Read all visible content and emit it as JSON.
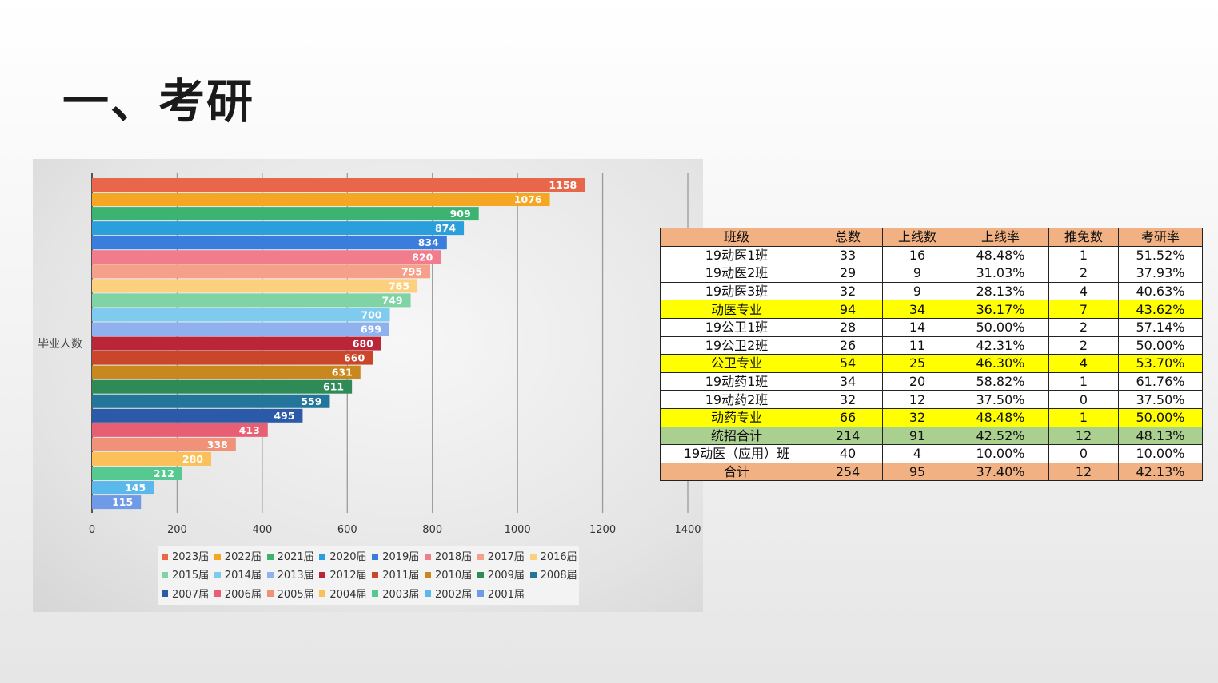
{
  "slide": {
    "title": "一、考研"
  },
  "colors": {
    "header_fill": "#f2b182",
    "subtotal_fill": "#ffff00",
    "unified_fill": "#a9d08e"
  },
  "chart_data": {
    "type": "bar",
    "orientation": "horizontal",
    "ylabel": "毕业人数",
    "xlim": [
      0,
      1400
    ],
    "xticks": [
      "0",
      "200",
      "400",
      "600",
      "800",
      "1000",
      "1200",
      "1400"
    ],
    "grid": true,
    "legend_position": "bottom",
    "series": [
      {
        "name": "2023届",
        "value": 1158,
        "color": "#e8664a"
      },
      {
        "name": "2022届",
        "value": 1076,
        "color": "#f5a623"
      },
      {
        "name": "2021届",
        "value": 909,
        "color": "#3cb371"
      },
      {
        "name": "2020届",
        "value": 874,
        "color": "#2b9fdc"
      },
      {
        "name": "2019届",
        "value": 834,
        "color": "#3b7ddd"
      },
      {
        "name": "2018届",
        "value": 820,
        "color": "#f07c8c"
      },
      {
        "name": "2017届",
        "value": 795,
        "color": "#f5a08a"
      },
      {
        "name": "2016届",
        "value": 765,
        "color": "#fcd07f"
      },
      {
        "name": "2015届",
        "value": 749,
        "color": "#7fd3a5"
      },
      {
        "name": "2014届",
        "value": 700,
        "color": "#7ecbef"
      },
      {
        "name": "2013届",
        "value": 699,
        "color": "#8fb2ef"
      },
      {
        "name": "2012届",
        "value": 680,
        "color": "#b9263a"
      },
      {
        "name": "2011届",
        "value": 660,
        "color": "#c9462a"
      },
      {
        "name": "2010届",
        "value": 631,
        "color": "#c9871f"
      },
      {
        "name": "2009届",
        "value": 611,
        "color": "#2e8a57"
      },
      {
        "name": "2008届",
        "value": 559,
        "color": "#23759a"
      },
      {
        "name": "2007届",
        "value": 495,
        "color": "#2a5aa8"
      },
      {
        "name": "2006届",
        "value": 413,
        "color": "#e85f74"
      },
      {
        "name": "2005届",
        "value": 338,
        "color": "#f09277"
      },
      {
        "name": "2004届",
        "value": 280,
        "color": "#fbc05a"
      },
      {
        "name": "2003届",
        "value": 212,
        "color": "#55c98f"
      },
      {
        "name": "2002届",
        "value": 145,
        "color": "#5bb8ea"
      },
      {
        "name": "2001届",
        "value": 115,
        "color": "#6f9ae8"
      }
    ]
  },
  "table": {
    "header": [
      "班级",
      "总数",
      "上线数",
      "上线率",
      "推免数",
      "考研率"
    ],
    "rows": [
      {
        "kind": "normal",
        "cells": [
          "19动医1班",
          "33",
          "16",
          "48.48%",
          "1",
          "51.52%"
        ]
      },
      {
        "kind": "normal",
        "cells": [
          "19动医2班",
          "29",
          "9",
          "31.03%",
          "2",
          "37.93%"
        ]
      },
      {
        "kind": "normal",
        "cells": [
          "19动医3班",
          "32",
          "9",
          "28.13%",
          "4",
          "40.63%"
        ]
      },
      {
        "kind": "subtotal",
        "cells": [
          "动医专业",
          "94",
          "34",
          "36.17%",
          "7",
          "43.62%"
        ]
      },
      {
        "kind": "normal",
        "cells": [
          "19公卫1班",
          "28",
          "14",
          "50.00%",
          "2",
          "57.14%"
        ]
      },
      {
        "kind": "normal",
        "cells": [
          "19公卫2班",
          "26",
          "11",
          "42.31%",
          "2",
          "50.00%"
        ]
      },
      {
        "kind": "subtotal",
        "cells": [
          "公卫专业",
          "54",
          "25",
          "46.30%",
          "4",
          "53.70%"
        ]
      },
      {
        "kind": "normal",
        "cells": [
          "19动药1班",
          "34",
          "20",
          "58.82%",
          "1",
          "61.76%"
        ]
      },
      {
        "kind": "normal",
        "cells": [
          "19动药2班",
          "32",
          "12",
          "37.50%",
          "0",
          "37.50%"
        ]
      },
      {
        "kind": "subtotal",
        "cells": [
          "动药专业",
          "66",
          "32",
          "48.48%",
          "1",
          "50.00%"
        ]
      },
      {
        "kind": "unified",
        "cells": [
          "统招合计",
          "214",
          "91",
          "42.52%",
          "12",
          "48.13%"
        ]
      },
      {
        "kind": "normal",
        "cells": [
          "19动医（应用）班",
          "40",
          "4",
          "10.00%",
          "0",
          "10.00%"
        ]
      },
      {
        "kind": "total",
        "cells": [
          "合计",
          "254",
          "95",
          "37.40%",
          "12",
          "42.13%"
        ]
      }
    ]
  }
}
